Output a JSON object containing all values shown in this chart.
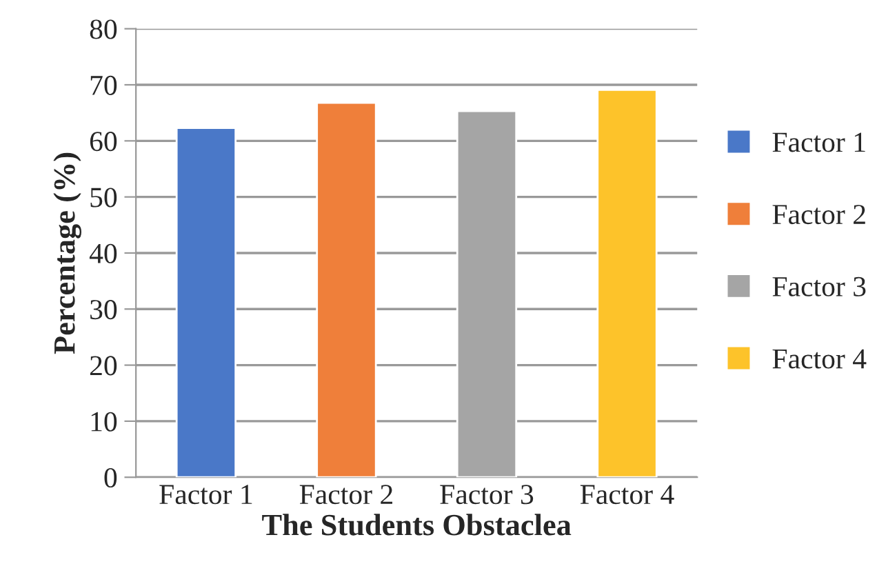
{
  "chart_data": {
    "type": "bar",
    "xlabel": "The Students Obstaclea",
    "ylabel": "Percentage (%)",
    "categories": [
      "Factor 1",
      "Factor 2",
      "Factor 3",
      "Factor 4"
    ],
    "series": [
      {
        "name": "Factor 1",
        "color": "#4a78c8",
        "values": [
          62.3,
          null,
          null,
          null
        ]
      },
      {
        "name": "Factor 2",
        "color": "#ef7f3a",
        "values": [
          null,
          66.8,
          null,
          null
        ]
      },
      {
        "name": "Factor 3",
        "color": "#a5a5a5",
        "values": [
          null,
          null,
          65.3,
          null
        ]
      },
      {
        "name": "Factor 4",
        "color": "#fdc32a",
        "values": [
          null,
          null,
          null,
          69.1
        ]
      }
    ],
    "ylim": [
      0,
      80
    ],
    "yticks": [
      0,
      10,
      20,
      30,
      40,
      50,
      60,
      70,
      80
    ],
    "grid": "y",
    "legend": "right"
  }
}
